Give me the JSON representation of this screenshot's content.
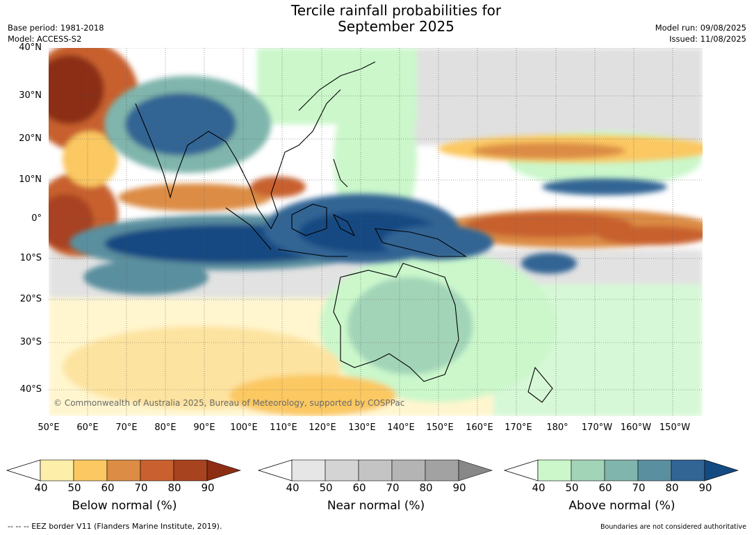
{
  "title_line1": "Tercile rainfall probabilities for",
  "title_line2": "September 2025",
  "base_period": "Base period: 1981-2018",
  "model": "Model: ACCESS-S2",
  "model_run": "Model run: 09/08/2025",
  "issued": "Issued: 11/08/2025",
  "credit": "© Commonwealth of Australia 2025, Bureau of Meteorology, supported by COSPPac",
  "footer_left": "--  --  -- EEZ border V11 (Flanders Marine Institute, 2019).",
  "footer_right": "Boundaries are not considered authoritative",
  "lat_labels": [
    "40°N",
    "30°N",
    "20°N",
    "10°N",
    "0°",
    "10°S",
    "20°S",
    "30°S",
    "40°S"
  ],
  "lon_labels": [
    "50°E",
    "60°E",
    "70°E",
    "80°E",
    "90°E",
    "100°E",
    "110°E",
    "120°E",
    "130°E",
    "140°E",
    "150°E",
    "160°E",
    "170°E",
    "180°",
    "170°W",
    "160°W",
    "150°W"
  ],
  "colorbars": [
    {
      "label": "Below normal (%)",
      "ticks": [
        "40",
        "50",
        "60",
        "70",
        "80",
        "90"
      ],
      "colors": [
        "#fdeeaa",
        "#fbc862",
        "#dc8c44",
        "#c8612f",
        "#a84320",
        "#8c2d14"
      ]
    },
    {
      "label": "Near normal (%)",
      "ticks": [
        "40",
        "50",
        "60",
        "70",
        "80",
        "90"
      ],
      "colors": [
        "#e6e6e6",
        "#d4d4d4",
        "#c4c4c4",
        "#b4b4b4",
        "#a2a2a2",
        "#888888"
      ]
    },
    {
      "label": "Above normal (%)",
      "ticks": [
        "40",
        "50",
        "60",
        "70",
        "80",
        "90"
      ],
      "colors": [
        "#cbf7cb",
        "#a2d4b8",
        "#7fb5ac",
        "#5a8f9f",
        "#326594",
        "#144a82"
      ]
    }
  ],
  "map_colors": {
    "ocean_base": "#ffffff",
    "below": [
      "#fdeeaa",
      "#fbc862",
      "#dc8c44",
      "#c8612f",
      "#a84320",
      "#8c2d14"
    ],
    "near": [
      "#e6e6e6",
      "#d4d4d4",
      "#c4c4c4"
    ],
    "above": [
      "#cbf7cb",
      "#a2d4b8",
      "#7fb5ac",
      "#5a8f9f",
      "#326594",
      "#144a82"
    ]
  }
}
